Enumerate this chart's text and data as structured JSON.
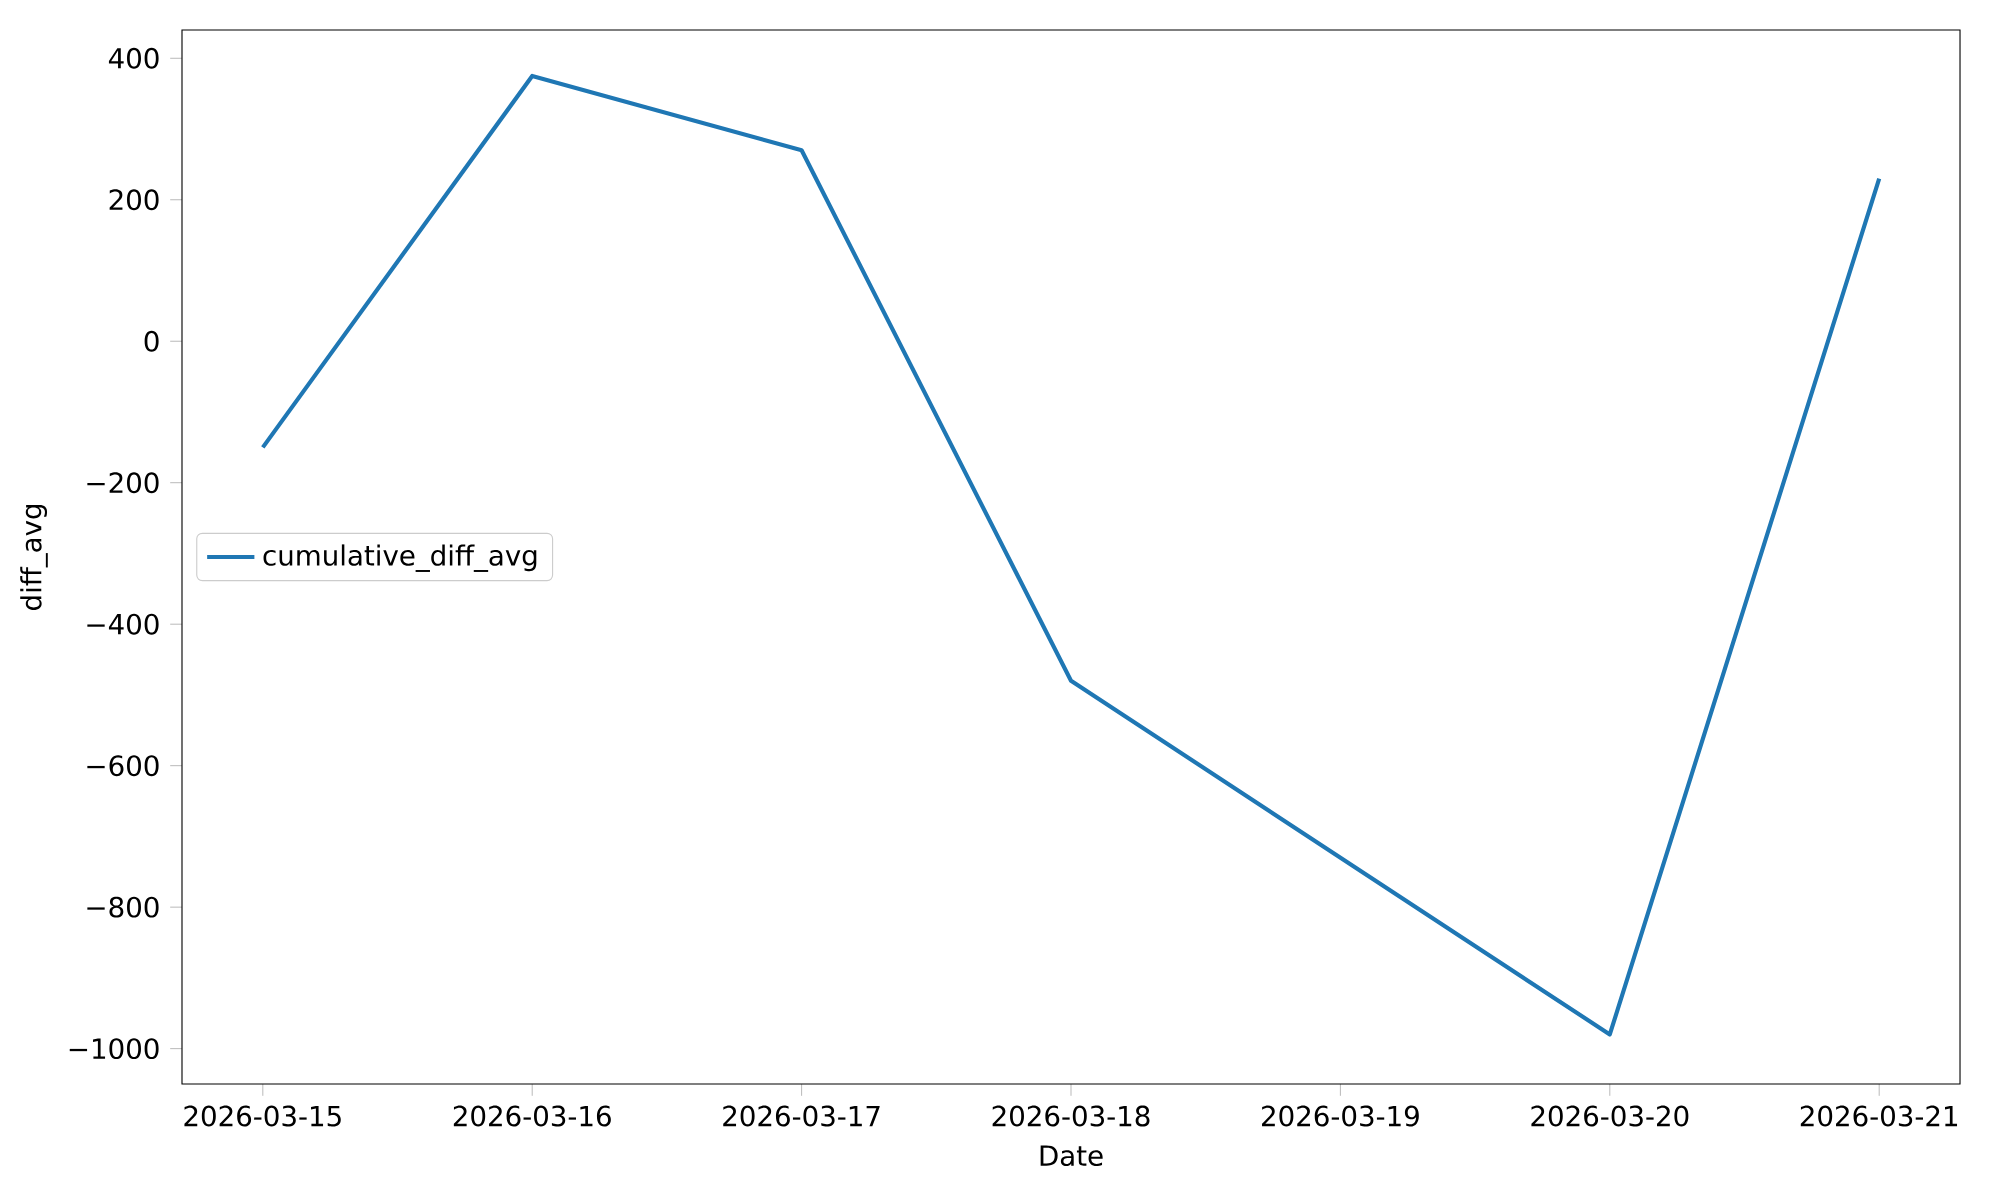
{
  "chart_data": {
    "type": "line",
    "xlabel": "Date",
    "ylabel": "diff_avg",
    "x": [
      "2026-03-15",
      "2026-03-16",
      "2026-03-17",
      "2026-03-18",
      "2026-03-20",
      "2026-03-21"
    ],
    "series": [
      {
        "name": "cumulative_diff_avg",
        "color": "#1f77b4",
        "values": [
          -150,
          375,
          270,
          -480,
          -980,
          230
        ]
      }
    ],
    "xlim": [
      "2026-03-14T16:48",
      "2026-03-21T07:12"
    ],
    "xticks": [
      "2026-03-15",
      "2026-03-16",
      "2026-03-17",
      "2026-03-18",
      "2026-03-19",
      "2026-03-20",
      "2026-03-21"
    ],
    "ylim": [
      -1050,
      440
    ],
    "yticks": [
      {
        "value": -1000,
        "label": "−1000"
      },
      {
        "value": -800,
        "label": "−800"
      },
      {
        "value": -600,
        "label": "−600"
      },
      {
        "value": -400,
        "label": "−400"
      },
      {
        "value": -200,
        "label": "−200"
      },
      0,
      200,
      400
    ],
    "legend": "left",
    "grid": false
  }
}
